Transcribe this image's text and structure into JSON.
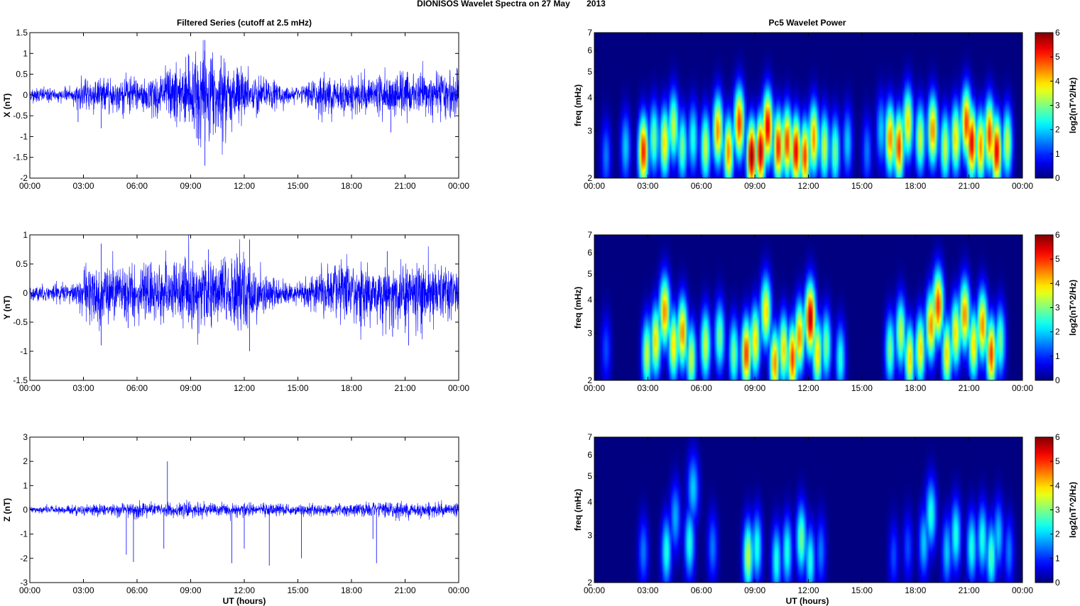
{
  "figure": {
    "suptitle": "DIONISOS Wavelet Spectra on 27 May       2013",
    "left_title": "Filtered Series (cutoff at 2.5 mHz)",
    "right_title": "Pc5 Wavelet Power",
    "xlabel": "UT (hours)",
    "freq_ylabel": "freq (mHz)",
    "colorbar_label": "log2(nT^2/Hz)"
  },
  "chart_data": [
    {
      "type": "line",
      "title": "Filtered Series (cutoff at 2.5 mHz)",
      "ylabel": "X (nT)",
      "xlabel": "",
      "xlim": [
        0,
        24
      ],
      "ylim": [
        -2,
        1.5
      ],
      "xticks": [
        "00:00",
        "03:00",
        "06:00",
        "09:00",
        "12:00",
        "15:00",
        "18:00",
        "21:00",
        "00:00"
      ],
      "yticks": [
        "-2",
        "-1.5",
        "-1",
        "-0.5",
        "0",
        "0.5",
        "1",
        "1.5"
      ],
      "color": "#0000ff",
      "envelope": [
        [
          0,
          0.15
        ],
        [
          2.5,
          0.15
        ],
        [
          3,
          0.4
        ],
        [
          5,
          0.35
        ],
        [
          7,
          0.45
        ],
        [
          8.5,
          0.7
        ],
        [
          9.5,
          0.95
        ],
        [
          10.5,
          0.8
        ],
        [
          12,
          0.55
        ],
        [
          13,
          0.35
        ],
        [
          15,
          0.15
        ],
        [
          16.5,
          0.45
        ],
        [
          18,
          0.4
        ],
        [
          20,
          0.45
        ],
        [
          22,
          0.45
        ],
        [
          24,
          0.55
        ]
      ],
      "spikes": [
        {
          "x": 9.8,
          "y": 1.32
        },
        {
          "x": 9.8,
          "y": -1.7
        },
        {
          "x": 9.4,
          "y": -1.05
        },
        {
          "x": 8.9,
          "y": 0.95
        },
        {
          "x": 10.7,
          "y": 0.95
        },
        {
          "x": 4,
          "y": -0.8
        },
        {
          "x": 2.7,
          "y": -0.65
        },
        {
          "x": 20.2,
          "y": -0.9
        },
        {
          "x": 23.9,
          "y": 0.65
        },
        {
          "x": 24,
          "y": -0.4
        }
      ]
    },
    {
      "type": "line",
      "ylabel": "Y (nT)",
      "xlim": [
        0,
        24
      ],
      "ylim": [
        -1.5,
        1
      ],
      "xticks": [
        "00:00",
        "03:00",
        "06:00",
        "09:00",
        "12:00",
        "15:00",
        "18:00",
        "21:00",
        "00:00"
      ],
      "yticks": [
        "-1.5",
        "-1",
        "-0.5",
        "0",
        "0.5",
        "1"
      ],
      "color": "#0000ff",
      "envelope": [
        [
          0,
          0.12
        ],
        [
          2.5,
          0.15
        ],
        [
          3.5,
          0.5
        ],
        [
          5.5,
          0.45
        ],
        [
          7,
          0.4
        ],
        [
          9,
          0.55
        ],
        [
          11,
          0.55
        ],
        [
          12,
          0.6
        ],
        [
          13,
          0.3
        ],
        [
          15,
          0.15
        ],
        [
          16.5,
          0.4
        ],
        [
          19,
          0.5
        ],
        [
          21,
          0.5
        ],
        [
          24,
          0.45
        ]
      ],
      "spikes": [
        {
          "x": 12.3,
          "y": 0.92
        },
        {
          "x": 12.3,
          "y": -1.0
        },
        {
          "x": 4,
          "y": 0.85
        },
        {
          "x": 4,
          "y": -0.9
        },
        {
          "x": 10,
          "y": 0.75
        },
        {
          "x": 5.5,
          "y": -0.6
        },
        {
          "x": 20.3,
          "y": -0.75
        },
        {
          "x": 21.2,
          "y": -0.9
        },
        {
          "x": 20,
          "y": 0.72
        }
      ]
    },
    {
      "type": "line",
      "ylabel": "Z (nT)",
      "xlabel": "UT (hours)",
      "xlim": [
        0,
        24
      ],
      "ylim": [
        -3,
        3
      ],
      "xticks": [
        "00:00",
        "03:00",
        "06:00",
        "09:00",
        "12:00",
        "15:00",
        "18:00",
        "21:00",
        "00:00"
      ],
      "yticks": [
        "-3",
        "-2",
        "-1",
        "0",
        "1",
        "2",
        "3"
      ],
      "color": "#0000ff",
      "envelope": [
        [
          0,
          0.12
        ],
        [
          3,
          0.2
        ],
        [
          6,
          0.28
        ],
        [
          9,
          0.25
        ],
        [
          12,
          0.25
        ],
        [
          15,
          0.2
        ],
        [
          18,
          0.25
        ],
        [
          21,
          0.3
        ],
        [
          24,
          0.25
        ]
      ],
      "spikes": [
        {
          "x": 5.4,
          "y": -1.85
        },
        {
          "x": 5.8,
          "y": -2.15
        },
        {
          "x": 7.5,
          "y": -1.6
        },
        {
          "x": 7.7,
          "y": 2.0
        },
        {
          "x": 11.3,
          "y": -2.2
        },
        {
          "x": 12,
          "y": -1.6
        },
        {
          "x": 13.4,
          "y": -2.3
        },
        {
          "x": 15.2,
          "y": -2.0
        },
        {
          "x": 19.2,
          "y": -1.2
        },
        {
          "x": 19.4,
          "y": -2.2
        }
      ]
    },
    {
      "type": "heatmap",
      "title": "Pc5 Wavelet Power",
      "ylabel": "freq (mHz)",
      "yscale": "log",
      "xlim": [
        0,
        24
      ],
      "ylim": [
        2,
        7
      ],
      "xticks": [
        "00:00",
        "03:00",
        "06:00",
        "09:00",
        "12:00",
        "15:00",
        "18:00",
        "21:00",
        "00:00"
      ],
      "yticks": [
        "2",
        "3",
        "4",
        "5",
        "6",
        "7"
      ],
      "colorbar": {
        "label": "log2(nT^2/Hz)",
        "range": [
          0,
          6
        ],
        "ticks": [
          "0",
          "1",
          "2",
          "3",
          "4",
          "5",
          "6"
        ],
        "colormap": "jet"
      },
      "blobs": [
        [
          0.6,
          2.4,
          1.5
        ],
        [
          1.7,
          2.6,
          2
        ],
        [
          2.7,
          2.5,
          5.2
        ],
        [
          3.3,
          2.8,
          3
        ],
        [
          3.9,
          2.7,
          4
        ],
        [
          4.4,
          3.1,
          3.5
        ],
        [
          4.9,
          2.6,
          3
        ],
        [
          5.5,
          2.8,
          2.5
        ],
        [
          6.2,
          2.6,
          3.5
        ],
        [
          6.9,
          3.0,
          4.5
        ],
        [
          7.5,
          2.5,
          4.5
        ],
        [
          8.1,
          3.2,
          5
        ],
        [
          8.8,
          2.4,
          6
        ],
        [
          9.3,
          2.5,
          5.8
        ],
        [
          9.7,
          3.1,
          5.5
        ],
        [
          10.3,
          2.6,
          5.2
        ],
        [
          10.8,
          2.7,
          5
        ],
        [
          11.3,
          2.5,
          5.5
        ],
        [
          11.8,
          2.4,
          5
        ],
        [
          12.3,
          2.8,
          4.5
        ],
        [
          12.9,
          2.6,
          3.5
        ],
        [
          13.5,
          2.5,
          3
        ],
        [
          14.2,
          2.7,
          2
        ],
        [
          15.3,
          2.5,
          1.5
        ],
        [
          16.1,
          3.0,
          2
        ],
        [
          16.6,
          2.8,
          4.5
        ],
        [
          17.1,
          2.6,
          5
        ],
        [
          17.6,
          3.2,
          4
        ],
        [
          18.3,
          2.8,
          3.5
        ],
        [
          19,
          3.0,
          4.5
        ],
        [
          19.7,
          2.6,
          3.5
        ],
        [
          20.3,
          2.8,
          4
        ],
        [
          20.9,
          3.2,
          5
        ],
        [
          21.2,
          2.7,
          5.5
        ],
        [
          21.7,
          2.6,
          4.5
        ],
        [
          22.2,
          2.9,
          5
        ],
        [
          22.6,
          2.5,
          5.5
        ],
        [
          23.2,
          2.7,
          3.5
        ]
      ]
    },
    {
      "type": "heatmap",
      "ylabel": "freq (mHz)",
      "yscale": "log",
      "xlim": [
        0,
        24
      ],
      "ylim": [
        2,
        7
      ],
      "xticks": [
        "00:00",
        "03:00",
        "06:00",
        "09:00",
        "12:00",
        "15:00",
        "18:00",
        "21:00",
        "00:00"
      ],
      "yticks": [
        "2",
        "3",
        "4",
        "5",
        "6",
        "7"
      ],
      "colorbar": {
        "label": "log2(nT^2/Hz)",
        "range": [
          0,
          6
        ],
        "ticks": [
          "0",
          "1",
          "2",
          "3",
          "4",
          "5",
          "6"
        ],
        "colormap": "jet"
      },
      "blobs": [
        [
          0.6,
          2.6,
          1.2
        ],
        [
          2.9,
          2.5,
          3.5
        ],
        [
          3.4,
          2.8,
          4
        ],
        [
          3.9,
          3.6,
          4.5
        ],
        [
          4.4,
          2.7,
          4
        ],
        [
          4.9,
          3.0,
          4.5
        ],
        [
          5.4,
          2.4,
          3.5
        ],
        [
          6.2,
          2.7,
          3.5
        ],
        [
          7,
          2.9,
          3
        ],
        [
          7.8,
          2.5,
          3
        ],
        [
          8.5,
          2.5,
          5
        ],
        [
          9,
          2.8,
          4
        ],
        [
          9.6,
          3.6,
          4
        ],
        [
          10.1,
          2.3,
          4.5
        ],
        [
          10.6,
          2.6,
          4
        ],
        [
          11.1,
          2.4,
          5
        ],
        [
          11.5,
          2.9,
          4.5
        ],
        [
          12.1,
          3.4,
          5.8
        ],
        [
          12.5,
          2.5,
          4
        ],
        [
          13,
          2.7,
          3
        ],
        [
          13.8,
          2.4,
          2.5
        ],
        [
          16.6,
          2.6,
          3
        ],
        [
          17.2,
          3.0,
          3.5
        ],
        [
          17.7,
          2.4,
          4
        ],
        [
          18.3,
          2.6,
          4
        ],
        [
          18.9,
          3.2,
          4.5
        ],
        [
          19.3,
          3.8,
          5
        ],
        [
          19.8,
          2.5,
          4
        ],
        [
          20.3,
          3.0,
          4
        ],
        [
          20.8,
          3.5,
          4.5
        ],
        [
          21.3,
          2.7,
          4
        ],
        [
          21.8,
          3.2,
          4.5
        ],
        [
          22.3,
          2.5,
          5
        ],
        [
          22.8,
          2.8,
          3
        ]
      ]
    },
    {
      "type": "heatmap",
      "ylabel": "freq (mHz)",
      "yscale": "log",
      "xlim": [
        0,
        24
      ],
      "ylim": [
        2,
        7
      ],
      "xticks": [
        "00:00",
        "03:00",
        "06:00",
        "09:00",
        "12:00",
        "15:00",
        "18:00",
        "21:00",
        "00:00"
      ],
      "yticks": [
        "2",
        "3",
        "4",
        "5",
        "6",
        "7"
      ],
      "colorbar": {
        "label": "log2(nT^2/Hz)",
        "range": [
          0,
          6
        ],
        "ticks": [
          "0",
          "1",
          "2",
          "3",
          "4",
          "5",
          "6"
        ],
        "colormap": "jet"
      },
      "blobs": [
        [
          2.7,
          2.6,
          1.5
        ],
        [
          4,
          2.6,
          2.5
        ],
        [
          4.5,
          3.5,
          1.8
        ],
        [
          5.3,
          2.8,
          2.5
        ],
        [
          5.5,
          4.5,
          2
        ],
        [
          6.6,
          2.7,
          1.5
        ],
        [
          8.6,
          2.5,
          3.5
        ],
        [
          9.1,
          2.7,
          2.5
        ],
        [
          10.2,
          2.4,
          2.5
        ],
        [
          10.8,
          2.6,
          2.5
        ],
        [
          11.6,
          2.9,
          3
        ],
        [
          12.1,
          2.4,
          2.5
        ],
        [
          12.7,
          2.6,
          1.5
        ],
        [
          16.8,
          2.5,
          1.2
        ],
        [
          17.6,
          2.7,
          1.2
        ],
        [
          18.5,
          2.8,
          2
        ],
        [
          18.9,
          3.6,
          2.5
        ],
        [
          19.8,
          2.6,
          2
        ],
        [
          20.3,
          3.0,
          2.5
        ],
        [
          21.2,
          2.7,
          2.5
        ],
        [
          21.8,
          2.9,
          2.5
        ],
        [
          22.3,
          2.5,
          2.8
        ],
        [
          22.7,
          3.0,
          2
        ],
        [
          23.3,
          2.6,
          1.5
        ]
      ]
    }
  ]
}
